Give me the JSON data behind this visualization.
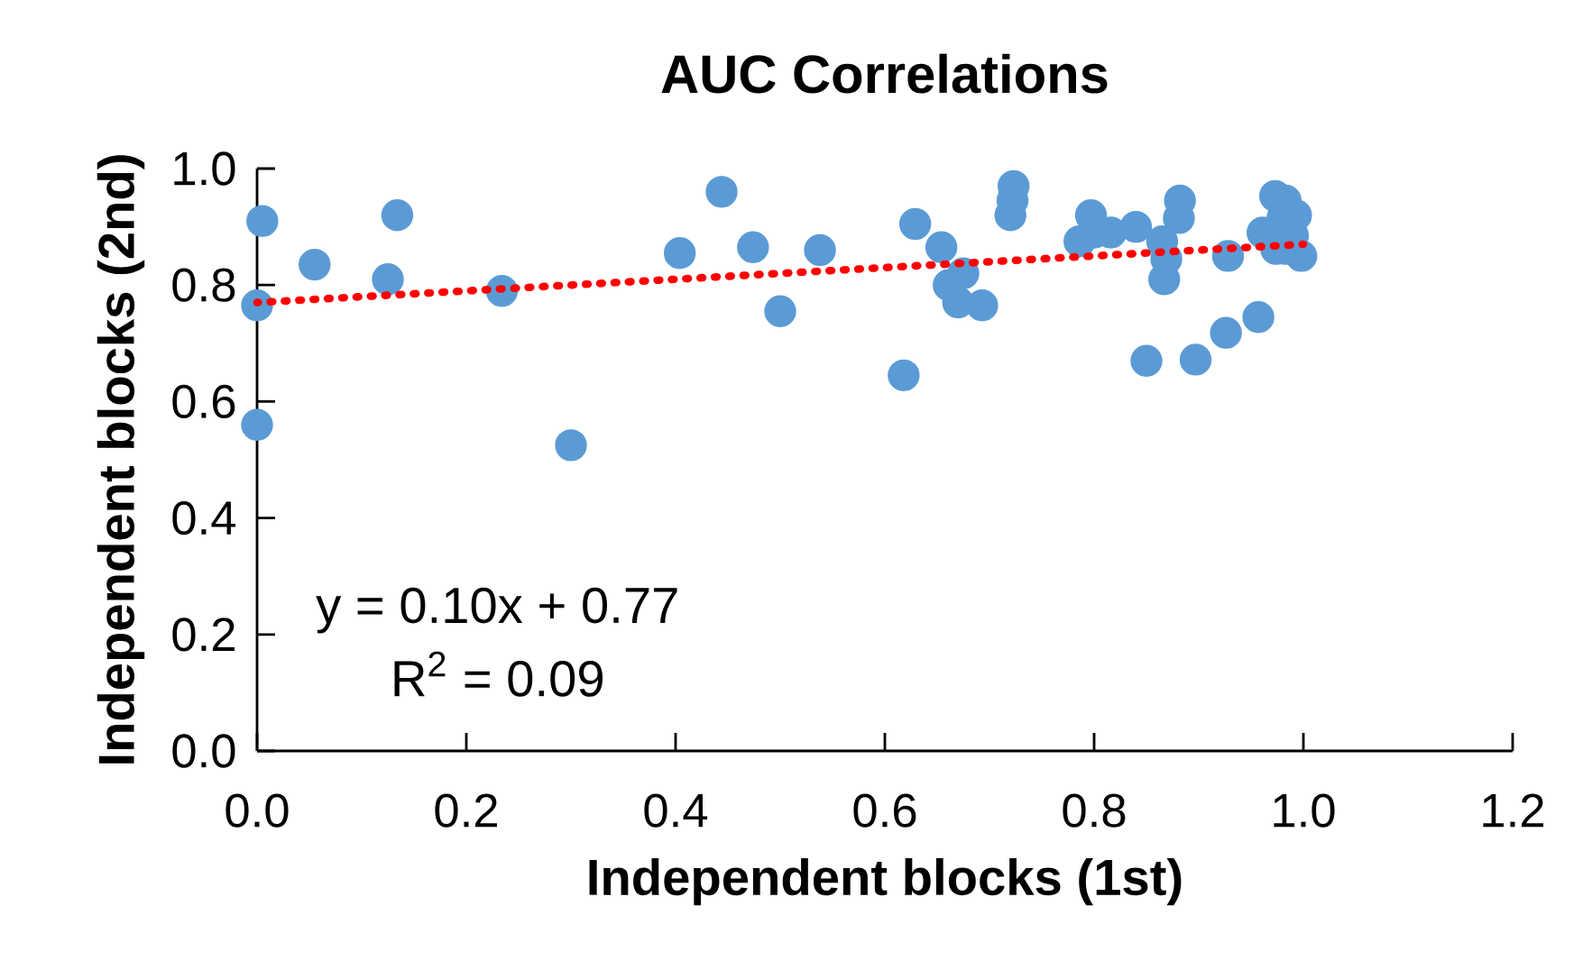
{
  "chart_data": {
    "type": "scatter",
    "title": "AUC Correlations",
    "xlabel": "Independent blocks (1st)",
    "ylabel": "Independent blocks (2nd)",
    "annotations": [
      "y = 0.10x + 0.77",
      "R$^{2}$ = 0.09"
    ],
    "xlim": [
      0,
      1.2
    ],
    "ylim": [
      0,
      1.0
    ],
    "xticks": [
      {
        "value": 0,
        "label": "0.0"
      },
      {
        "value": 0.2,
        "label": "0.2"
      },
      {
        "value": 0.4,
        "label": "0.4"
      },
      {
        "value": 0.6,
        "label": "0.6"
      },
      {
        "value": 0.8,
        "label": "0.8"
      },
      {
        "value": 1.0,
        "label": "1.0"
      },
      {
        "value": 1.2,
        "label": "1.2"
      }
    ],
    "yticks": [
      {
        "value": 0,
        "label": "0.0"
      },
      {
        "value": 0.2,
        "label": "0.2"
      },
      {
        "value": 0.4,
        "label": "0.4"
      },
      {
        "value": 0.6,
        "label": "0.6"
      },
      {
        "value": 0.8,
        "label": "0.8"
      },
      {
        "value": 1.0,
        "label": "1.0"
      }
    ],
    "grid": false,
    "series": [
      {
        "type": "scatter",
        "color": "#5b9bd5",
        "marker": "circle",
        "x": [
          0.005,
          0.0,
          0.0,
          0.055,
          0.125,
          0.134,
          0.234,
          0.3,
          0.404,
          0.444,
          0.474,
          0.5,
          0.538,
          0.618,
          0.629,
          0.654,
          0.661,
          0.67,
          0.675,
          0.693,
          0.72,
          0.722,
          0.723,
          0.786,
          0.797,
          0.8,
          0.816,
          0.84,
          0.85,
          0.865,
          0.869,
          0.867,
          0.881,
          0.882,
          0.897,
          0.926,
          0.928,
          0.957,
          0.961,
          0.973,
          0.983,
          0.974,
          0.983,
          0.99,
          0.993,
          0.998,
          0.98
        ],
        "values": [
          0.91,
          0.765,
          0.56,
          0.835,
          0.81,
          0.92,
          0.79,
          0.525,
          0.855,
          0.96,
          0.865,
          0.755,
          0.86,
          0.645,
          0.905,
          0.865,
          0.8,
          0.77,
          0.82,
          0.765,
          0.92,
          0.945,
          0.97,
          0.875,
          0.92,
          0.89,
          0.89,
          0.9,
          0.67,
          0.875,
          0.845,
          0.81,
          0.915,
          0.945,
          0.672,
          0.718,
          0.85,
          0.745,
          0.89,
          0.953,
          0.945,
          0.862,
          0.862,
          0.885,
          0.92,
          0.85,
          0.915
        ]
      },
      {
        "type": "line",
        "color": "#ff0000",
        "line_style": "dotted",
        "marker": "none",
        "x": [
          0,
          1.0
        ],
        "values": [
          0.77,
          0.87
        ]
      }
    ]
  }
}
